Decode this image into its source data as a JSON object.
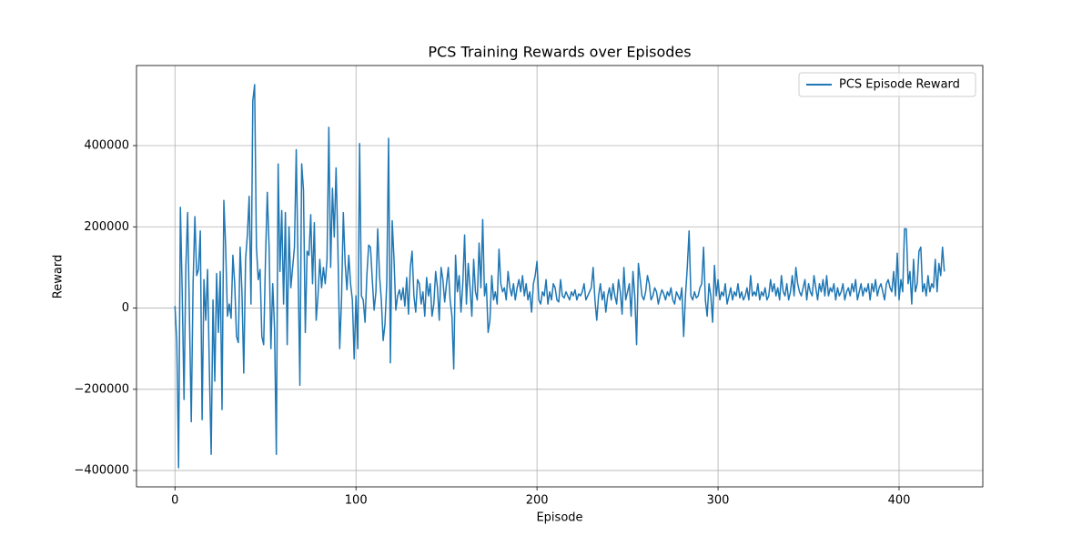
{
  "chart_data": {
    "type": "line",
    "title": "PCS Training Rewards over Episodes",
    "x_label": "Episode",
    "y_label": "Reward",
    "xlim": [
      -21.25,
      446.25
    ],
    "xticks": [
      0,
      100,
      200,
      300,
      400
    ],
    "ylim": [
      -440150,
      597150
    ],
    "yticks": [
      {
        "value": -400000,
        "label": "−400000"
      },
      {
        "value": -200000,
        "label": "−200000"
      },
      0,
      200000,
      400000
    ],
    "grid": true,
    "legend": "upper right",
    "x": [
      0,
      1,
      2,
      3,
      4,
      5,
      6,
      7,
      8,
      9,
      10,
      11,
      12,
      13,
      14,
      15,
      16,
      17,
      18,
      19,
      20,
      21,
      22,
      23,
      24,
      25,
      26,
      27,
      28,
      29,
      30,
      31,
      32,
      33,
      34,
      35,
      36,
      37,
      38,
      39,
      40,
      41,
      42,
      43,
      44,
      45,
      46,
      47,
      48,
      49,
      50,
      51,
      52,
      53,
      54,
      55,
      56,
      57,
      58,
      59,
      60,
      61,
      62,
      63,
      64,
      65,
      66,
      67,
      68,
      69,
      70,
      71,
      72,
      73,
      74,
      75,
      76,
      77,
      78,
      79,
      80,
      81,
      82,
      83,
      84,
      85,
      86,
      87,
      88,
      89,
      90,
      91,
      92,
      93,
      94,
      95,
      96,
      97,
      98,
      99,
      100,
      101,
      102,
      103,
      104,
      105,
      106,
      107,
      108,
      109,
      110,
      111,
      112,
      113,
      114,
      115,
      116,
      117,
      118,
      119,
      120,
      121,
      122,
      123,
      124,
      125,
      126,
      127,
      128,
      129,
      130,
      131,
      132,
      133,
      134,
      135,
      136,
      137,
      138,
      139,
      140,
      141,
      142,
      143,
      144,
      145,
      146,
      147,
      148,
      149,
      150,
      151,
      152,
      153,
      154,
      155,
      156,
      157,
      158,
      159,
      160,
      161,
      162,
      163,
      164,
      165,
      166,
      167,
      168,
      169,
      170,
      171,
      172,
      173,
      174,
      175,
      176,
      177,
      178,
      179,
      180,
      181,
      182,
      183,
      184,
      185,
      186,
      187,
      188,
      189,
      190,
      191,
      192,
      193,
      194,
      195,
      196,
      197,
      198,
      199,
      200,
      201,
      202,
      203,
      204,
      205,
      206,
      207,
      208,
      209,
      210,
      211,
      212,
      213,
      214,
      215,
      216,
      217,
      218,
      219,
      220,
      221,
      222,
      223,
      224,
      225,
      226,
      227,
      228,
      229,
      230,
      231,
      232,
      233,
      234,
      235,
      236,
      237,
      238,
      239,
      240,
      241,
      242,
      243,
      244,
      245,
      246,
      247,
      248,
      249,
      250,
      251,
      252,
      253,
      254,
      255,
      256,
      257,
      258,
      259,
      260,
      261,
      262,
      263,
      264,
      265,
      266,
      267,
      268,
      269,
      270,
      271,
      272,
      273,
      274,
      275,
      276,
      277,
      278,
      279,
      280,
      281,
      282,
      283,
      284,
      285,
      286,
      287,
      288,
      289,
      290,
      291,
      292,
      293,
      294,
      295,
      296,
      297,
      298,
      299,
      300,
      301,
      302,
      303,
      304,
      305,
      306,
      307,
      308,
      309,
      310,
      311,
      312,
      313,
      314,
      315,
      316,
      317,
      318,
      319,
      320,
      321,
      322,
      323,
      324,
      325,
      326,
      327,
      328,
      329,
      330,
      331,
      332,
      333,
      334,
      335,
      336,
      337,
      338,
      339,
      340,
      341,
      342,
      343,
      344,
      345,
      346,
      347,
      348,
      349,
      350,
      351,
      352,
      353,
      354,
      355,
      356,
      357,
      358,
      359,
      360,
      361,
      362,
      363,
      364,
      365,
      366,
      367,
      368,
      369,
      370,
      371,
      372,
      373,
      374,
      375,
      376,
      377,
      378,
      379,
      380,
      381,
      382,
      383,
      384,
      385,
      386,
      387,
      388,
      389,
      390,
      391,
      392,
      393,
      394,
      395,
      396,
      397,
      398,
      399,
      400,
      401,
      402,
      403,
      404,
      405,
      406,
      407,
      408,
      409,
      410,
      411,
      412,
      413,
      414,
      415,
      416,
      417,
      418,
      419,
      420,
      421,
      422,
      423,
      424,
      425
    ],
    "series": [
      {
        "name": "PCS Episode Reward",
        "color": "#1f77b4",
        "values": [
          5000,
          -80000,
          -393000,
          248000,
          40000,
          -225000,
          100000,
          235000,
          -20000,
          -280000,
          60000,
          225000,
          80000,
          95000,
          190000,
          -275000,
          70000,
          -30000,
          95000,
          -150000,
          -360000,
          20000,
          -180000,
          85000,
          -60000,
          90000,
          -250000,
          265000,
          150000,
          -20000,
          10000,
          -25000,
          130000,
          60000,
          -70000,
          -85000,
          150000,
          40000,
          -160000,
          120000,
          180000,
          275000,
          10000,
          510000,
          550000,
          150000,
          70000,
          95000,
          -70000,
          -90000,
          120000,
          285000,
          150000,
          -100000,
          60000,
          -50000,
          -360000,
          355000,
          90000,
          240000,
          10000,
          235000,
          -90000,
          200000,
          50000,
          100000,
          150000,
          390000,
          100000,
          -190000,
          355000,
          290000,
          -60000,
          140000,
          130000,
          230000,
          60000,
          210000,
          -30000,
          30000,
          120000,
          50000,
          100000,
          60000,
          120000,
          445000,
          100000,
          295000,
          175000,
          345000,
          150000,
          -100000,
          20000,
          235000,
          110000,
          45000,
          130000,
          60000,
          20000,
          -125000,
          30000,
          -100000,
          405000,
          30000,
          20000,
          -35000,
          80000,
          155000,
          150000,
          70000,
          -5000,
          40000,
          195000,
          80000,
          20000,
          -80000,
          -40000,
          60000,
          418000,
          -135000,
          215000,
          120000,
          -5000,
          30000,
          45000,
          20000,
          50000,
          5000,
          75000,
          -15000,
          100000,
          140000,
          30000,
          -10000,
          70000,
          60000,
          10000,
          40000,
          -20000,
          75000,
          30000,
          60000,
          -20000,
          10000,
          90000,
          50000,
          -30000,
          100000,
          70000,
          15000,
          60000,
          100000,
          20000,
          -20000,
          -150000,
          130000,
          40000,
          80000,
          -10000,
          60000,
          180000,
          10000,
          110000,
          50000,
          -20000,
          120000,
          40000,
          20000,
          160000,
          50000,
          218000,
          30000,
          60000,
          -60000,
          -30000,
          80000,
          20000,
          40000,
          10000,
          145000,
          60000,
          40000,
          50000,
          20000,
          90000,
          50000,
          30000,
          60000,
          20000,
          50000,
          70000,
          40000,
          80000,
          30000,
          60000,
          20000,
          40000,
          -10000,
          60000,
          80000,
          115000,
          20000,
          10000,
          40000,
          30000,
          70000,
          10000,
          40000,
          20000,
          60000,
          50000,
          20000,
          15000,
          70000,
          30000,
          25000,
          40000,
          30000,
          20000,
          40000,
          30000,
          45000,
          20000,
          35000,
          30000,
          40000,
          60000,
          20000,
          30000,
          40000,
          50000,
          100000,
          20000,
          -30000,
          30000,
          60000,
          20000,
          40000,
          -10000,
          30000,
          50000,
          20000,
          60000,
          30000,
          10000,
          70000,
          40000,
          -15000,
          100000,
          20000,
          40000,
          60000,
          -20000,
          90000,
          30000,
          -90000,
          110000,
          70000,
          30000,
          20000,
          40000,
          80000,
          60000,
          20000,
          30000,
          50000,
          40000,
          10000,
          30000,
          45000,
          35000,
          20000,
          40000,
          30000,
          50000,
          20000,
          10000,
          40000,
          30000,
          20000,
          50000,
          -70000,
          30000,
          100000,
          190000,
          30000,
          20000,
          40000,
          25000,
          30000,
          50000,
          60000,
          150000,
          20000,
          -20000,
          60000,
          30000,
          -35000,
          105000,
          30000,
          70000,
          20000,
          40000,
          30000,
          60000,
          10000,
          30000,
          50000,
          20000,
          40000,
          30000,
          60000,
          25000,
          40000,
          20000,
          30000,
          50000,
          20000,
          80000,
          30000,
          40000,
          30000,
          60000,
          20000,
          40000,
          30000,
          50000,
          20000,
          30000,
          70000,
          40000,
          60000,
          30000,
          50000,
          20000,
          80000,
          40000,
          30000,
          60000,
          20000,
          40000,
          80000,
          30000,
          100000,
          60000,
          40000,
          30000,
          50000,
          70000,
          20000,
          60000,
          40000,
          30000,
          80000,
          50000,
          20000,
          60000,
          40000,
          70000,
          30000,
          80000,
          30000,
          50000,
          40000,
          60000,
          20000,
          50000,
          30000,
          40000,
          60000,
          20000,
          40000,
          50000,
          30000,
          60000,
          40000,
          70000,
          20000,
          40000,
          60000,
          30000,
          50000,
          40000,
          60000,
          20000,
          60000,
          40000,
          70000,
          30000,
          50000,
          60000,
          40000,
          20000,
          60000,
          70000,
          50000,
          40000,
          90000,
          30000,
          135000,
          20000,
          70000,
          40000,
          195000,
          195000,
          60000,
          90000,
          10000,
          120000,
          40000,
          60000,
          140000,
          150000,
          40000,
          60000,
          30000,
          80000,
          40000,
          60000,
          50000,
          120000,
          40000,
          110000,
          80000,
          150000,
          90000
        ]
      }
    ]
  }
}
